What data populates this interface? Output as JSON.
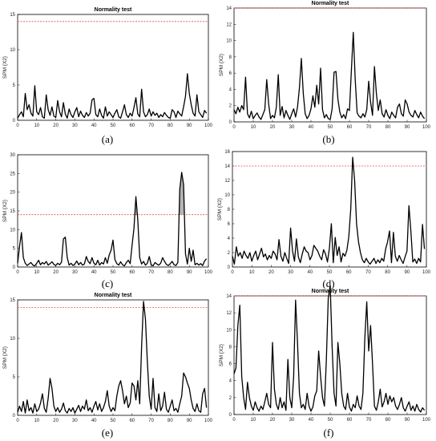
{
  "chart_data": [
    {
      "panel": "(a)",
      "type": "line",
      "title": "Normality test",
      "ylabel": "SPM {X2}",
      "xlabel": "",
      "xlim": [
        0,
        100
      ],
      "ylim": [
        0,
        15
      ],
      "xticks": [
        0,
        10,
        20,
        30,
        40,
        50,
        60,
        70,
        80,
        90,
        100
      ],
      "yticks": [
        0,
        5,
        10,
        15
      ],
      "threshold": 14,
      "line_color": "#000000",
      "threshold_color": "#e05050",
      "x": [
        0,
        1,
        2,
        3,
        4,
        5,
        6,
        7,
        8,
        9,
        10,
        11,
        12,
        13,
        14,
        15,
        16,
        17,
        18,
        19,
        20,
        21,
        22,
        23,
        24,
        25,
        26,
        27,
        28,
        29,
        30,
        31,
        32,
        33,
        34,
        35,
        36,
        37,
        38,
        39,
        40,
        41,
        42,
        43,
        44,
        45,
        46,
        47,
        48,
        49,
        50,
        51,
        52,
        53,
        54,
        55,
        56,
        57,
        58,
        59,
        60,
        61,
        62,
        63,
        64,
        65,
        66,
        67,
        68,
        69,
        70,
        71,
        72,
        73,
        74,
        75,
        76,
        77,
        78,
        79,
        80,
        81,
        82,
        83,
        84,
        85,
        86,
        87,
        88,
        89,
        90,
        91,
        92,
        93,
        94,
        95,
        96,
        97,
        98,
        99
      ],
      "y": [
        0.3,
        0.8,
        1.2,
        0.5,
        3.8,
        1.5,
        2.2,
        1.0,
        0.6,
        4.9,
        1.2,
        0.8,
        1.8,
        0.5,
        0.3,
        3.6,
        1.5,
        0.7,
        1.9,
        0.6,
        0.4,
        2.8,
        1.2,
        0.5,
        2.5,
        0.9,
        0.3,
        1.6,
        0.8,
        0.4,
        1.2,
        1.8,
        0.5,
        1.3,
        0.7,
        0.4,
        1.1,
        0.6,
        1.0,
        2.9,
        3.1,
        0.8,
        0.5,
        1.6,
        0.7,
        0.3,
        1.9,
        0.6,
        1.2,
        0.8,
        0.4,
        1.0,
        1.5,
        0.5,
        0.3,
        1.2,
        2.2,
        0.8,
        0.4,
        1.0,
        0.6,
        1.8,
        3.2,
        0.9,
        0.5,
        4.4,
        1.2,
        0.5,
        0.8,
        1.6,
        0.6,
        1.2,
        0.7,
        1.0,
        0.4,
        0.8,
        0.5,
        1.1,
        0.7,
        0.4,
        0.3,
        1.5,
        1.2,
        0.4,
        1.3,
        0.9,
        0.6,
        1.9,
        3.4,
        6.6,
        3.8,
        2.2,
        1.0,
        0.6,
        3.6,
        1.2,
        0.8,
        0.4,
        1.4,
        1.0
      ]
    },
    {
      "panel": "(b)",
      "type": "line",
      "title": "Normality test",
      "ylabel": "SPM {X2}",
      "xlabel": "",
      "xlim": [
        0,
        100
      ],
      "ylim": [
        0,
        14
      ],
      "xticks": [
        0,
        10,
        20,
        30,
        40,
        50,
        60,
        70,
        80,
        90,
        100
      ],
      "yticks": [
        0,
        2,
        4,
        6,
        8,
        10,
        12,
        14
      ],
      "threshold": 14,
      "line_color": "#000000",
      "threshold_color": "#e05050",
      "x": [
        0,
        1,
        2,
        3,
        4,
        5,
        6,
        7,
        8,
        9,
        10,
        11,
        12,
        13,
        14,
        15,
        16,
        17,
        18,
        19,
        20,
        21,
        22,
        23,
        24,
        25,
        26,
        27,
        28,
        29,
        30,
        31,
        32,
        33,
        34,
        35,
        36,
        37,
        38,
        39,
        40,
        41,
        42,
        43,
        44,
        45,
        46,
        47,
        48,
        49,
        50,
        51,
        52,
        53,
        54,
        55,
        56,
        57,
        58,
        59,
        60,
        61,
        62,
        63,
        64,
        65,
        66,
        67,
        68,
        69,
        70,
        71,
        72,
        73,
        74,
        75,
        76,
        77,
        78,
        79,
        80,
        81,
        82,
        83,
        84,
        85,
        86,
        87,
        88,
        89,
        90,
        91,
        92,
        93,
        94,
        95,
        96,
        97,
        98,
        99
      ],
      "y": [
        1.5,
        1.0,
        1.8,
        1.2,
        2.0,
        1.5,
        5.5,
        1.0,
        0.5,
        1.3,
        0.4,
        0.8,
        1.1,
        0.6,
        0.3,
        0.9,
        1.5,
        5.2,
        2.2,
        0.4,
        0.8,
        0.5,
        1.8,
        5.8,
        0.8,
        1.9,
        0.5,
        1.4,
        0.8,
        0.3,
        1.0,
        1.6,
        0.6,
        1.8,
        4.2,
        7.8,
        3.5,
        1.0,
        0.4,
        0.8,
        1.6,
        3.2,
        1.8,
        4.5,
        2.2,
        6.6,
        1.5,
        0.5,
        0.9,
        0.4,
        0.3,
        1.6,
        6.1,
        6.2,
        2.8,
        1.2,
        0.5,
        0.9,
        0.4,
        1.6,
        1.4,
        6.3,
        11.0,
        5.2,
        1.1,
        0.7,
        0.5,
        1.0,
        0.6,
        1.5,
        5.0,
        2.4,
        0.8,
        6.8,
        3.5,
        1.4,
        2.7,
        1.0,
        0.6,
        1.5,
        0.8,
        0.4,
        1.2,
        0.8,
        0.5,
        1.8,
        2.2,
        1.0,
        0.7,
        2.7,
        2.2,
        1.2,
        0.8,
        0.6,
        1.4,
        0.9,
        0.5,
        1.2,
        0.7,
        0.4
      ]
    },
    {
      "panel": "(c)",
      "type": "line",
      "title": "",
      "ylabel": "SPM {X2}",
      "xlabel": "",
      "xlim": [
        0,
        100
      ],
      "ylim": [
        0,
        30
      ],
      "xticks": [
        0,
        10,
        20,
        30,
        40,
        50,
        60,
        70,
        80,
        90,
        100
      ],
      "yticks": [
        0,
        5,
        10,
        15,
        20,
        25,
        30
      ],
      "threshold": 14,
      "line_color": "#000000",
      "threshold_color": "#e05050",
      "x": [
        0,
        1,
        2,
        3,
        4,
        5,
        6,
        7,
        8,
        9,
        10,
        11,
        12,
        13,
        14,
        15,
        16,
        17,
        18,
        19,
        20,
        21,
        22,
        23,
        24,
        25,
        26,
        27,
        28,
        29,
        30,
        31,
        32,
        33,
        34,
        35,
        36,
        37,
        38,
        39,
        40,
        41,
        42,
        43,
        44,
        45,
        46,
        47,
        48,
        49,
        50,
        51,
        52,
        53,
        54,
        55,
        56,
        57,
        58,
        59,
        60,
        61,
        62,
        63,
        64,
        65,
        66,
        67,
        68,
        69,
        70,
        71,
        72,
        73,
        74,
        75,
        76,
        77,
        78,
        79,
        80,
        81,
        82,
        83,
        84,
        85,
        86,
        87,
        88,
        89,
        90,
        91,
        92,
        93,
        94,
        95,
        96,
        97,
        98,
        99
      ],
      "y": [
        1.0,
        5.5,
        9.2,
        2.5,
        1.0,
        0.4,
        0.8,
        1.2,
        0.5,
        0.3,
        1.0,
        1.8,
        0.6,
        1.2,
        0.8,
        1.5,
        0.5,
        0.9,
        1.4,
        0.7,
        0.4,
        1.0,
        0.6,
        1.3,
        7.5,
        8.0,
        2.5,
        0.5,
        1.0,
        0.4,
        0.8,
        1.6,
        0.6,
        1.2,
        0.5,
        0.8,
        2.8,
        1.5,
        0.9,
        2.5,
        1.0,
        0.6,
        1.8,
        0.5,
        1.2,
        0.8,
        2.5,
        1.0,
        3.2,
        4.5,
        7.2,
        2.0,
        0.9,
        0.5,
        1.4,
        0.6,
        0.3,
        1.2,
        1.8,
        0.9,
        5.8,
        10.4,
        18.8,
        12.5,
        2.5,
        0.8,
        1.5,
        0.5,
        1.0,
        2.8,
        0.6,
        0.3,
        1.2,
        0.8,
        0.5,
        1.0,
        2.5,
        1.5,
        0.7,
        0.4,
        0.9,
        1.5,
        0.6,
        0.4,
        1.2,
        20.8,
        25.3,
        22.0,
        3.5,
        0.8,
        5.0,
        1.5,
        4.5,
        0.6,
        1.0,
        0.5,
        0.9,
        0.4,
        1.6,
        2.2
      ]
    },
    {
      "panel": "(d)",
      "type": "line",
      "title": "",
      "ylabel": "SPM {X2}",
      "xlabel": "",
      "xlim": [
        0,
        100
      ],
      "ylim": [
        0,
        16
      ],
      "xticks": [
        0,
        10,
        20,
        30,
        40,
        50,
        60,
        70,
        80,
        90,
        100
      ],
      "yticks": [
        0,
        2,
        4,
        6,
        8,
        10,
        12,
        14,
        16
      ],
      "threshold": 14,
      "line_color": "#000000",
      "threshold_color": "#e05050",
      "x": [
        0,
        1,
        2,
        3,
        4,
        5,
        6,
        7,
        8,
        9,
        10,
        11,
        12,
        13,
        14,
        15,
        16,
        17,
        18,
        19,
        20,
        21,
        22,
        23,
        24,
        25,
        26,
        27,
        28,
        29,
        30,
        31,
        32,
        33,
        34,
        35,
        36,
        37,
        38,
        39,
        40,
        41,
        42,
        43,
        44,
        45,
        46,
        47,
        48,
        49,
        50,
        51,
        52,
        53,
        54,
        55,
        56,
        57,
        58,
        59,
        60,
        61,
        62,
        63,
        64,
        65,
        66,
        67,
        68,
        69,
        70,
        71,
        72,
        73,
        74,
        75,
        76,
        77,
        78,
        79,
        80,
        81,
        82,
        83,
        84,
        85,
        86,
        87,
        88,
        89,
        90,
        91,
        92,
        93,
        94,
        95,
        96,
        97,
        98,
        99
      ],
      "y": [
        1.5,
        0.4,
        2.8,
        1.5,
        2.0,
        1.2,
        2.2,
        1.6,
        1.2,
        2.0,
        0.8,
        1.6,
        2.2,
        1.0,
        1.8,
        2.6,
        1.4,
        1.8,
        1.0,
        1.6,
        1.2,
        2.2,
        1.8,
        1.0,
        3.8,
        1.5,
        0.8,
        2.0,
        1.2,
        0.5,
        5.4,
        2.2,
        0.8,
        3.9,
        1.4,
        0.6,
        1.8,
        2.8,
        2.2,
        2.0,
        1.0,
        1.6,
        3.0,
        2.6,
        2.2,
        1.5,
        1.0,
        2.4,
        1.8,
        0.7,
        2.6,
        6.0,
        0.6,
        4.1,
        1.6,
        2.8,
        0.7,
        1.9,
        1.5,
        2.3,
        4.2,
        8.0,
        15.2,
        12.0,
        6.0,
        3.5,
        2.0,
        1.0,
        0.6,
        1.2,
        0.7,
        0.4,
        0.8,
        1.2,
        0.5,
        1.0,
        0.6,
        1.2,
        0.8,
        2.5,
        3.5,
        5.0,
        0.6,
        4.8,
        1.5,
        0.8,
        1.6,
        1.0,
        0.5,
        1.4,
        2.2,
        8.5,
        5.0,
        0.7,
        1.1,
        0.5,
        1.2,
        0.7,
        5.9,
        2.5
      ]
    },
    {
      "panel": "(e)",
      "type": "line",
      "title": "Normality test",
      "ylabel": "SPM {X2}",
      "xlabel": "",
      "xlim": [
        0,
        100
      ],
      "ylim": [
        0,
        15
      ],
      "xticks": [
        0,
        10,
        20,
        30,
        40,
        50,
        60,
        70,
        80,
        90,
        100
      ],
      "yticks": [
        0,
        5,
        10,
        15
      ],
      "threshold": 14,
      "line_color": "#000000",
      "threshold_color": "#e05050",
      "x": [
        0,
        1,
        2,
        3,
        4,
        5,
        6,
        7,
        8,
        9,
        10,
        11,
        12,
        13,
        14,
        15,
        16,
        17,
        18,
        19,
        20,
        21,
        22,
        23,
        24,
        25,
        26,
        27,
        28,
        29,
        30,
        31,
        32,
        33,
        34,
        35,
        36,
        37,
        38,
        39,
        40,
        41,
        42,
        43,
        44,
        45,
        46,
        47,
        48,
        49,
        50,
        51,
        52,
        53,
        54,
        55,
        56,
        57,
        58,
        59,
        60,
        61,
        62,
        63,
        64,
        65,
        66,
        67,
        68,
        69,
        70,
        71,
        72,
        73,
        74,
        75,
        76,
        77,
        78,
        79,
        80,
        81,
        82,
        83,
        84,
        85,
        86,
        87,
        88,
        89,
        90,
        91,
        92,
        93,
        94,
        95,
        96,
        97,
        98,
        99
      ],
      "y": [
        0.4,
        1.2,
        0.5,
        1.8,
        0.3,
        2.0,
        0.6,
        1.0,
        0.3,
        1.5,
        0.5,
        0.8,
        1.6,
        2.8,
        0.9,
        0.4,
        2.2,
        4.8,
        3.5,
        1.2,
        0.5,
        1.0,
        0.4,
        0.8,
        1.6,
        0.6,
        0.3,
        0.9,
        0.5,
        1.0,
        0.3,
        0.8,
        1.3,
        0.5,
        1.2,
        0.8,
        2.0,
        0.6,
        1.0,
        0.4,
        1.2,
        1.8,
        0.7,
        1.5,
        0.5,
        1.0,
        1.8,
        3.2,
        1.2,
        0.5,
        1.0,
        0.6,
        2.5,
        3.8,
        4.5,
        3.2,
        1.5,
        2.5,
        1.0,
        1.6,
        4.2,
        3.8,
        2.0,
        4.5,
        1.5,
        9.0,
        14.8,
        12.5,
        7.0,
        2.5,
        0.8,
        4.8,
        1.0,
        0.5,
        2.8,
        0.6,
        1.2,
        3.0,
        0.8,
        0.4,
        1.2,
        2.0,
        0.6,
        0.9,
        0.4,
        1.5,
        2.5,
        5.5,
        5.0,
        4.2,
        3.5,
        2.0,
        0.9,
        0.5,
        1.5,
        0.6,
        0.4,
        2.8,
        3.5,
        1.0
      ]
    },
    {
      "panel": "(f)",
      "type": "line",
      "title": "Normality test",
      "ylabel": "SPM {X2}",
      "xlabel": "",
      "xlim": [
        0,
        100
      ],
      "ylim": [
        0,
        14
      ],
      "xticks": [
        0,
        10,
        20,
        30,
        40,
        50,
        60,
        70,
        80,
        90,
        100
      ],
      "yticks": [
        0,
        2,
        4,
        6,
        8,
        10,
        12,
        14
      ],
      "threshold": 14,
      "line_color": "#000000",
      "threshold_color": "#e05050",
      "x": [
        0,
        1,
        2,
        3,
        4,
        5,
        6,
        7,
        8,
        9,
        10,
        11,
        12,
        13,
        14,
        15,
        16,
        17,
        18,
        19,
        20,
        21,
        22,
        23,
        24,
        25,
        26,
        27,
        28,
        29,
        30,
        31,
        32,
        33,
        34,
        35,
        36,
        37,
        38,
        39,
        40,
        41,
        42,
        43,
        44,
        45,
        46,
        47,
        48,
        49,
        50,
        51,
        52,
        53,
        54,
        55,
        56,
        57,
        58,
        59,
        60,
        61,
        62,
        63,
        64,
        65,
        66,
        67,
        68,
        69,
        70,
        71,
        72,
        73,
        74,
        75,
        76,
        77,
        78,
        79,
        80,
        81,
        82,
        83,
        84,
        85,
        86,
        87,
        88,
        89,
        90,
        91,
        92,
        93,
        94,
        95,
        96,
        97,
        98,
        99
      ],
      "y": [
        4.8,
        5.5,
        10.5,
        12.9,
        4.5,
        2.0,
        0.6,
        3.8,
        2.0,
        1.0,
        0.5,
        1.5,
        0.8,
        0.4,
        1.0,
        0.6,
        1.5,
        2.5,
        1.2,
        0.8,
        8.5,
        3.0,
        1.2,
        0.6,
        2.0,
        0.8,
        1.5,
        0.5,
        6.5,
        2.0,
        0.8,
        4.5,
        13.5,
        8.5,
        2.5,
        0.8,
        1.2,
        0.6,
        2.5,
        1.0,
        0.4,
        0.9,
        2.2,
        2.8,
        7.5,
        4.5,
        2.0,
        1.0,
        6.5,
        13.8,
        15.2,
        8.0,
        2.5,
        1.0,
        8.5,
        6.0,
        2.5,
        1.0,
        0.6,
        2.5,
        0.9,
        0.4,
        1.2,
        0.8,
        2.2,
        1.0,
        0.6,
        2.5,
        9.0,
        13.3,
        7.5,
        10.5,
        6.0,
        1.0,
        0.5,
        1.5,
        3.0,
        0.9,
        1.5,
        2.5,
        1.2,
        2.2,
        1.5,
        2.0,
        1.0,
        0.6,
        1.2,
        2.0,
        0.8,
        0.4,
        1.0,
        1.5,
        0.5,
        1.0,
        0.4,
        1.2,
        0.6,
        0.3,
        0.8,
        0.5
      ]
    }
  ]
}
